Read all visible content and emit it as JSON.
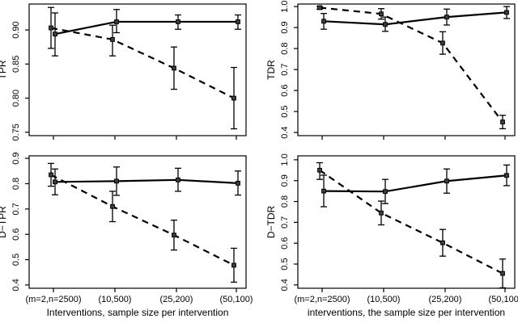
{
  "figure": {
    "background": "#ffffff",
    "ink_color": "#000000",
    "marker_fill": "#3f3f3f"
  },
  "chart_data": {
    "type": "line",
    "layout": "2x2-grid",
    "categories": [
      "(m=2,n=2500)",
      "(10,500)",
      "(25,200)",
      "(50,100)"
    ],
    "panels": [
      {
        "id": "tpr",
        "ylabel": "TPR",
        "xlabel": "",
        "show_x_labels": false,
        "ylim": [
          0.745,
          0.938
        ],
        "yticks": [
          0.75,
          0.8,
          0.85,
          0.9
        ],
        "ytick_labels": [
          "0.75",
          "0.80",
          "0.85",
          "0.90"
        ],
        "series": [
          {
            "name": "solid-line-method",
            "style": "solid",
            "values": [
              0.894,
              0.912,
              0.912,
              0.912
            ],
            "err_lo": [
              0.862,
              0.896,
              0.901,
              0.901
            ],
            "err_hi": [
              0.925,
              0.93,
              0.922,
              0.922
            ]
          },
          {
            "name": "dashed-line-method",
            "style": "dashed",
            "values": [
              0.903,
              0.886,
              0.844,
              0.8
            ],
            "err_lo": [
              0.873,
              0.862,
              0.813,
              0.755
            ],
            "err_hi": [
              0.933,
              0.907,
              0.875,
              0.845
            ]
          }
        ]
      },
      {
        "id": "tdr",
        "ylabel": "TDR",
        "xlabel": "",
        "show_x_labels": false,
        "ylim": [
          0.385,
          1.012
        ],
        "yticks": [
          0.4,
          0.5,
          0.6,
          0.7,
          0.8,
          0.9,
          1.0
        ],
        "ytick_labels": [
          "0.4",
          "0.5",
          "0.6",
          "0.7",
          "0.8",
          "0.9",
          "1.0"
        ],
        "series": [
          {
            "name": "solid-line-method",
            "style": "solid",
            "values": [
              0.93,
              0.915,
              0.95,
              0.972
            ],
            "err_lo": [
              0.892,
              0.882,
              0.912,
              0.943
            ],
            "err_hi": [
              0.967,
              0.95,
              0.988,
              1.0
            ]
          },
          {
            "name": "dashed-line-method",
            "style": "dashed",
            "values": [
              0.995,
              0.965,
              0.826,
              0.45
            ],
            "err_lo": [
              0.987,
              0.94,
              0.773,
              0.418
            ],
            "err_hi": [
              1.0,
              0.99,
              0.88,
              0.482
            ]
          }
        ]
      },
      {
        "id": "d-tpr",
        "ylabel": "D−TPR",
        "xlabel": "Interventions, sample size  per intervention",
        "show_x_labels": true,
        "ylim": [
          0.387,
          0.91
        ],
        "yticks": [
          0.4,
          0.5,
          0.6,
          0.7,
          0.8,
          0.9
        ],
        "ytick_labels": [
          "0.4",
          "0.5",
          "0.6",
          "0.7",
          "0.8",
          "0.9"
        ],
        "series": [
          {
            "name": "solid-line-method",
            "style": "solid",
            "values": [
              0.807,
              0.81,
              0.815,
              0.802
            ],
            "err_lo": [
              0.756,
              0.754,
              0.77,
              0.755
            ],
            "err_hi": [
              0.858,
              0.866,
              0.861,
              0.85
            ]
          },
          {
            "name": "dashed-line-method",
            "style": "dashed",
            "values": [
              0.835,
              0.71,
              0.597,
              0.478
            ],
            "err_lo": [
              0.79,
              0.65,
              0.538,
              0.411
            ],
            "err_hi": [
              0.88,
              0.77,
              0.656,
              0.545
            ]
          }
        ]
      },
      {
        "id": "d-tdr",
        "ylabel": "D−TDR",
        "xlabel": "interventions, the sample size per intervention",
        "show_x_labels": true,
        "ylim": [
          0.384,
          1.019
        ],
        "yticks": [
          0.4,
          0.5,
          0.6,
          0.7,
          0.8,
          0.9,
          1.0
        ],
        "ytick_labels": [
          "0.4",
          "0.5",
          "0.6",
          "0.7",
          "0.8",
          "0.9",
          "1.0"
        ],
        "series": [
          {
            "name": "solid-line-method",
            "style": "solid",
            "values": [
              0.85,
              0.848,
              0.898,
              0.925
            ],
            "err_lo": [
              0.775,
              0.79,
              0.84,
              0.876
            ],
            "err_hi": [
              0.926,
              0.906,
              0.956,
              0.975
            ]
          },
          {
            "name": "dashed-line-method",
            "style": "dashed",
            "values": [
              0.95,
              0.745,
              0.602,
              0.455
            ],
            "err_lo": [
              0.906,
              0.688,
              0.538,
              0.386
            ],
            "err_hi": [
              0.986,
              0.802,
              0.666,
              0.524
            ]
          }
        ]
      }
    ]
  }
}
